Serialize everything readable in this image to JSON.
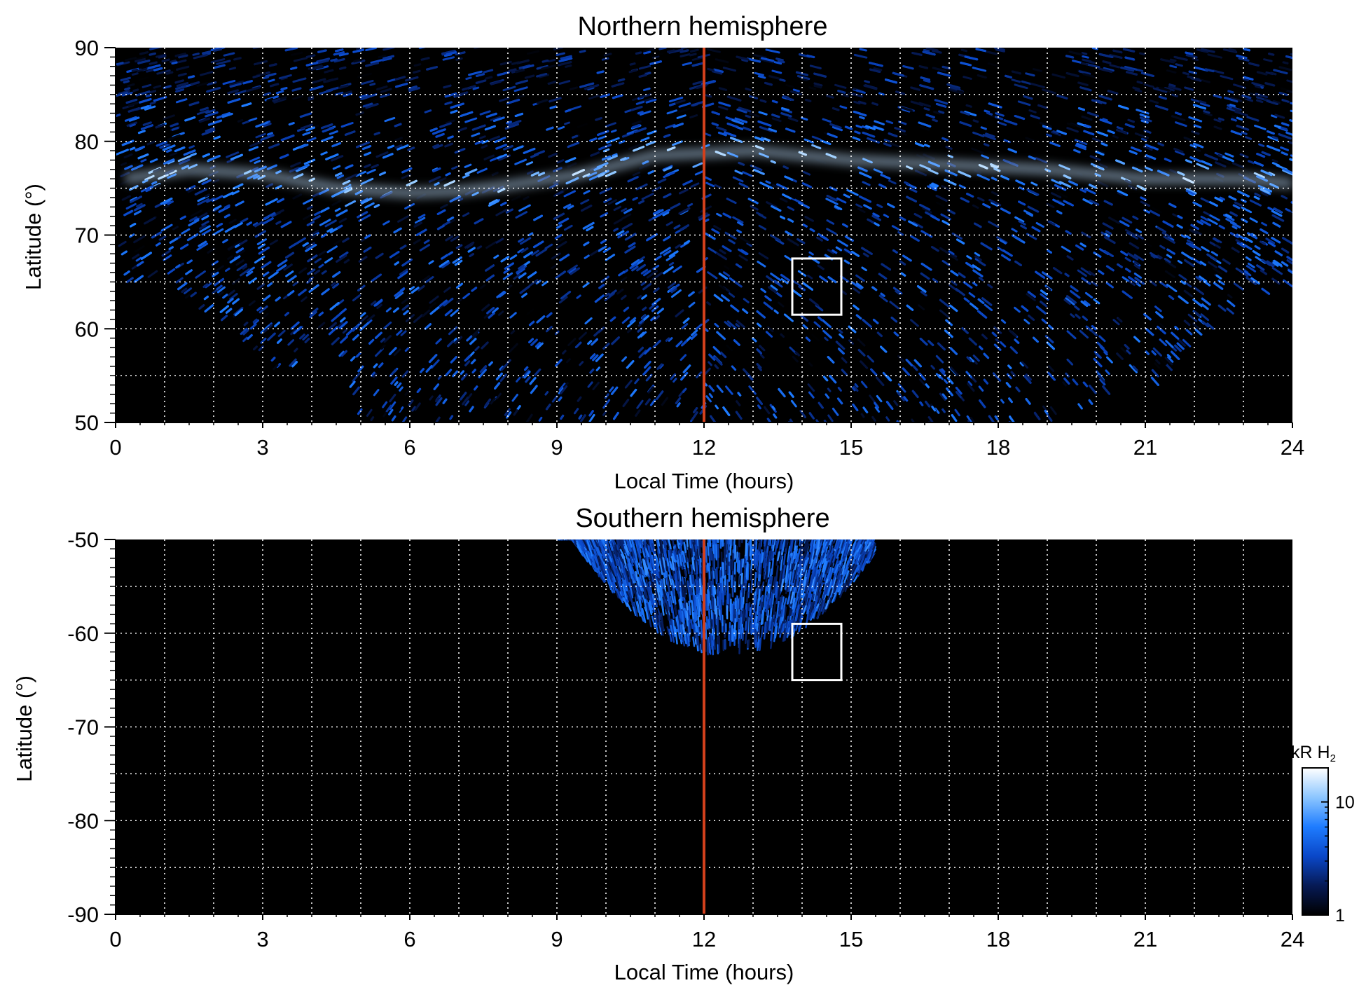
{
  "chart_data": [
    {
      "type": "heatmap",
      "title": "Northern hemisphere",
      "xlabel": "Local Time (hours)",
      "ylabel": "Latitude (°)",
      "xlim": [
        0,
        24
      ],
      "ylim": [
        50,
        90
      ],
      "xticks": [
        0,
        3,
        6,
        9,
        12,
        15,
        18,
        21,
        24
      ],
      "xtick_labels": [
        "0",
        "3",
        "6",
        "9",
        "12",
        "15",
        "18",
        "21",
        "24"
      ],
      "yticks": [
        50,
        60,
        70,
        80,
        90
      ],
      "ytick_labels": [
        "50",
        "60",
        "70",
        "80",
        "90"
      ],
      "grid": true,
      "grid_x": [
        1,
        2,
        3,
        4,
        5,
        6,
        7,
        8,
        9,
        10,
        11,
        12,
        13,
        14,
        15,
        16,
        17,
        18,
        19,
        20,
        21,
        22,
        23
      ],
      "grid_y": [
        55,
        60,
        65,
        70,
        75,
        80,
        85
      ],
      "vertical_line": {
        "x": 12,
        "color": "#d2401c"
      },
      "box": {
        "x": [
          13.8,
          14.8
        ],
        "y": [
          61.5,
          67.5
        ],
        "color": "#ffffff"
      },
      "bright_arc": [
        {
          "lt": 0.2,
          "lat": 76
        },
        {
          "lt": 1.5,
          "lat": 77
        },
        {
          "lt": 3,
          "lat": 76.5
        },
        {
          "lt": 4.5,
          "lat": 75
        },
        {
          "lt": 6,
          "lat": 74.5
        },
        {
          "lt": 7,
          "lat": 74.7
        },
        {
          "lt": 8,
          "lat": 75.3
        },
        {
          "lt": 9.5,
          "lat": 76.5
        },
        {
          "lt": 11,
          "lat": 78.5
        },
        {
          "lt": 13,
          "lat": 79
        },
        {
          "lt": 15,
          "lat": 78
        },
        {
          "lt": 17,
          "lat": 77.5
        },
        {
          "lt": 19,
          "lat": 77
        },
        {
          "lt": 21,
          "lat": 76
        },
        {
          "lt": 23,
          "lat": 76
        },
        {
          "lt": 24,
          "lat": 75.5
        }
      ],
      "coverage_boundary": [
        {
          "lt": 0,
          "lat": 65
        },
        {
          "lt": 1.5,
          "lat": 63
        },
        {
          "lt": 3,
          "lat": 57
        },
        {
          "lt": 3.5,
          "lat": 54
        },
        {
          "lt": 4,
          "lat": 60
        },
        {
          "lt": 4.5,
          "lat": 58
        },
        {
          "lt": 5,
          "lat": 50
        },
        {
          "lt": 19.5,
          "lat": 50
        },
        {
          "lt": 20.5,
          "lat": 56
        },
        {
          "lt": 21,
          "lat": 54
        },
        {
          "lt": 22,
          "lat": 59
        },
        {
          "lt": 23,
          "lat": 63
        },
        {
          "lt": 24,
          "lat": 65
        }
      ]
    },
    {
      "type": "heatmap",
      "title": "Southern hemisphere",
      "xlabel": "Local Time (hours)",
      "ylabel": "Latitude (°)",
      "xlim": [
        0,
        24
      ],
      "ylim": [
        -90,
        -50
      ],
      "xticks": [
        0,
        3,
        6,
        9,
        12,
        15,
        18,
        21,
        24
      ],
      "xtick_labels": [
        "0",
        "3",
        "6",
        "9",
        "12",
        "15",
        "18",
        "21",
        "24"
      ],
      "yticks": [
        -90,
        -80,
        -70,
        -60,
        -50
      ],
      "ytick_labels": [
        "-90",
        "-80",
        "-70",
        "-60",
        "-50"
      ],
      "grid": true,
      "grid_x": [
        1,
        2,
        3,
        4,
        5,
        6,
        7,
        8,
        9,
        10,
        11,
        12,
        13,
        14,
        15,
        16,
        17,
        18,
        19,
        20,
        21,
        22,
        23
      ],
      "grid_y": [
        -55,
        -60,
        -65,
        -70,
        -75,
        -80,
        -85
      ],
      "vertical_line": {
        "x": 12,
        "color": "#d2401c"
      },
      "box": {
        "x": [
          13.8,
          14.8
        ],
        "y": [
          -65,
          -59
        ],
        "color": "#ffffff"
      },
      "coverage_region": {
        "lt_range": [
          9,
          15.4
        ],
        "center_lt": 12.5,
        "lowest_lat": -62.5
      }
    }
  ],
  "colorbar": {
    "label_main": "kR H",
    "label_sub": "2",
    "scale": "log",
    "range": [
      1,
      20
    ],
    "tick_labels": [
      "10",
      "1"
    ],
    "tick_values": [
      10,
      1
    ],
    "colors": [
      "#000000",
      "#061a55",
      "#0a47c8",
      "#1e7cff",
      "#8cc6ff",
      "#ffffff"
    ]
  }
}
